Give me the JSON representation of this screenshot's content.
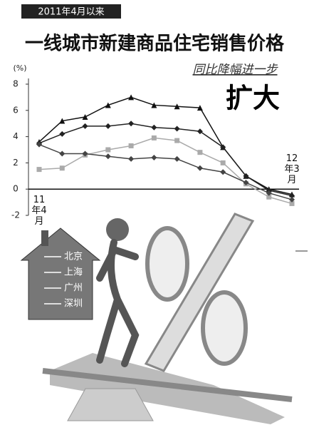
{
  "chart_data": {
    "type": "line",
    "kicker": "2011年4月以来",
    "title": "一线城市新建商品住宅销售价格",
    "subtitle": "同比降幅进一步",
    "headline": "扩大",
    "y_label": "(%)",
    "categories": [
      "11年4月",
      null,
      null,
      null,
      null,
      null,
      null,
      null,
      null,
      null,
      null,
      "12年3月"
    ],
    "ylim": [
      -2,
      8
    ],
    "yticks": [
      -2,
      0,
      2,
      4,
      6,
      8
    ],
    "series": [
      {
        "name": "北京",
        "color": "#111111",
        "marker": "triangle",
        "values": [
          3.6,
          5.2,
          5.5,
          6.4,
          7.0,
          6.4,
          6.3,
          6.2,
          3.2,
          1.0,
          0.0,
          -0.4
        ]
      },
      {
        "name": "上海",
        "color": "#222222",
        "marker": "diamond",
        "values": [
          3.5,
          4.2,
          4.8,
          4.8,
          5.0,
          4.7,
          4.6,
          4.4,
          3.2,
          1.0,
          -0.1,
          -0.5
        ]
      },
      {
        "name": "广州",
        "color": "#aaaaaa",
        "marker": "square",
        "values": [
          1.5,
          1.6,
          2.6,
          3.0,
          3.3,
          3.9,
          3.7,
          2.8,
          2.0,
          0.4,
          -0.6,
          -1.1
        ]
      },
      {
        "name": "深圳",
        "color": "#444444",
        "marker": "diamond",
        "values": [
          3.4,
          2.7,
          2.7,
          2.5,
          2.3,
          2.4,
          2.3,
          1.6,
          1.3,
          0.5,
          -0.3,
          -0.8
        ]
      }
    ]
  }
}
